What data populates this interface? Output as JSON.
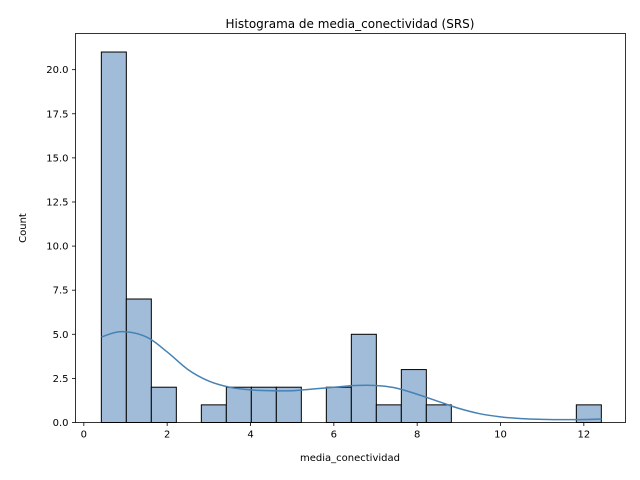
{
  "chart_data": {
    "type": "bar",
    "title": "Histograma de media_conectividad (SRS)",
    "xlabel": "media_conectividad",
    "ylabel": "Count",
    "xlim": [
      -0.2,
      13.0
    ],
    "ylim": [
      0,
      22.05
    ],
    "xticks": [
      0,
      2,
      4,
      6,
      8,
      10,
      12
    ],
    "xtick_labels": [
      "0",
      "2",
      "4",
      "6",
      "8",
      "10",
      "12"
    ],
    "yticks": [
      0,
      2.5,
      5,
      7.5,
      10,
      12.5,
      15,
      17.5,
      20
    ],
    "ytick_labels": [
      "0.0",
      "2.5",
      "5.0",
      "7.5",
      "10.0",
      "12.5",
      "15.0",
      "17.5",
      "20.0"
    ],
    "bin_edges": [
      0.42,
      1.02,
      1.62,
      2.22,
      2.82,
      3.42,
      4.02,
      4.62,
      5.22,
      5.82,
      6.42,
      7.02,
      7.62,
      8.22,
      8.82,
      9.42,
      10.02,
      10.62,
      11.22,
      11.82,
      12.42
    ],
    "counts": [
      21,
      7,
      2,
      0,
      1,
      2,
      2,
      2,
      0,
      2,
      5,
      1,
      3,
      1,
      0,
      0,
      0,
      0,
      0,
      1
    ],
    "kde": {
      "x": [
        0.42,
        0.9,
        1.5,
        2.0,
        2.5,
        3.0,
        3.5,
        4.0,
        4.5,
        5.0,
        5.5,
        6.0,
        6.5,
        7.0,
        7.5,
        8.0,
        8.5,
        9.0,
        9.5,
        10.0,
        10.5,
        11.0,
        11.5,
        12.0,
        12.42
      ],
      "y": [
        4.85,
        5.15,
        4.85,
        4.0,
        3.0,
        2.35,
        2.0,
        1.85,
        1.8,
        1.8,
        1.9,
        2.0,
        2.1,
        2.1,
        1.95,
        1.6,
        1.2,
        0.8,
        0.5,
        0.32,
        0.22,
        0.18,
        0.16,
        0.17,
        0.2
      ],
      "color": "#4682b4"
    },
    "bar_color": "#a1bcd8",
    "grid": false,
    "legend": "none"
  }
}
